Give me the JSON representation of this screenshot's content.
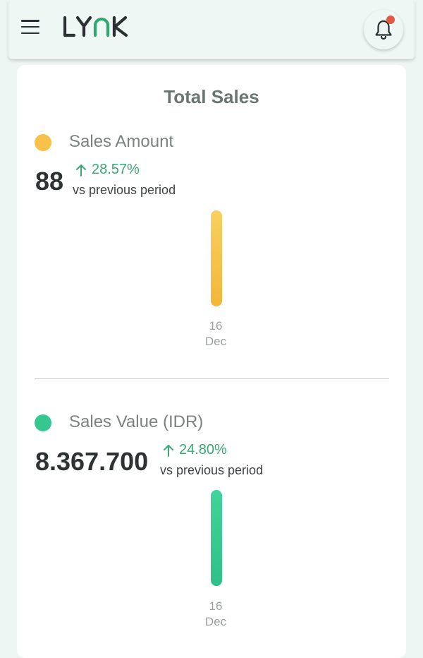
{
  "header": {
    "brand": "LYNK",
    "icons": {
      "menu": "hamburger-menu-icon",
      "notifications": "bell-icon"
    },
    "colors": {
      "notification_dot": "#e05a42"
    }
  },
  "card": {
    "title": "Total Sales"
  },
  "metrics": [
    {
      "label": "Sales Amount",
      "value": "88",
      "change": "28.57%",
      "change_direction": "up",
      "vs": "vs previous period",
      "color": "#f7c14a",
      "bar_day": "16",
      "bar_month": "Dec"
    },
    {
      "label": "Sales Value (IDR)",
      "value": "8.367.700",
      "change": "24.80%",
      "change_direction": "up",
      "vs": "vs previous period",
      "color": "#34c790",
      "bar_day": "16",
      "bar_month": "Dec"
    }
  ]
}
